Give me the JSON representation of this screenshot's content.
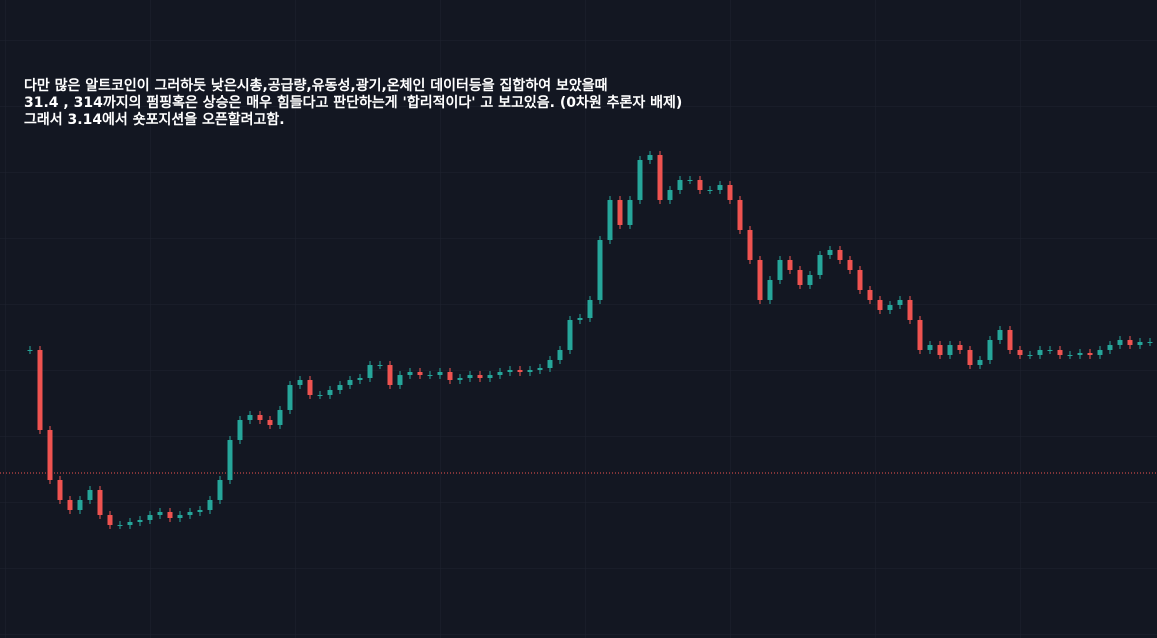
{
  "chart_data": {
    "type": "candlestick",
    "annotation": [
      "다만 많은 알트코인이 그러하듯 낮은시총,공급량,유동성,광기,온체인 데이터등을 집합하여 보았을때",
      "31.4 , 314까지의 펌핑혹은 상승은 매우 힘들다고 판단하는게 '합리적이다' 고 보고있음. (0차원 추론자 배제)",
      "그래서 3.14에서 숏포지션을 오픈할려고함."
    ],
    "values": [
      288,
      208,
      158,
      138,
      128,
      138,
      148,
      123,
      113,
      113,
      116,
      118,
      123,
      126,
      120,
      123,
      126,
      128,
      138,
      158,
      198,
      218,
      223,
      218,
      213,
      228,
      253,
      258,
      243,
      243,
      248,
      253,
      258,
      260,
      273,
      273,
      253,
      263,
      266,
      263,
      263,
      266,
      258,
      260,
      263,
      260,
      263,
      266,
      268,
      266,
      268,
      270,
      278,
      288,
      318,
      320,
      338,
      398,
      438,
      413,
      438,
      478,
      483,
      438,
      448,
      458,
      458,
      448,
      448,
      453,
      438,
      408,
      378,
      338,
      358,
      378,
      368,
      353,
      363,
      383,
      388,
      378,
      368,
      348,
      338,
      328,
      333,
      338,
      318,
      288,
      293,
      283,
      293,
      288,
      273,
      278,
      298,
      308,
      288,
      283,
      283,
      288,
      288,
      283,
      283,
      285,
      283,
      288,
      293,
      298,
      293,
      296,
      296
    ],
    "up_color": "#26a69a",
    "down_color": "#ef5350",
    "hline": 165,
    "hline_color": "#ef5350",
    "ylim": [
      0,
      638
    ]
  }
}
